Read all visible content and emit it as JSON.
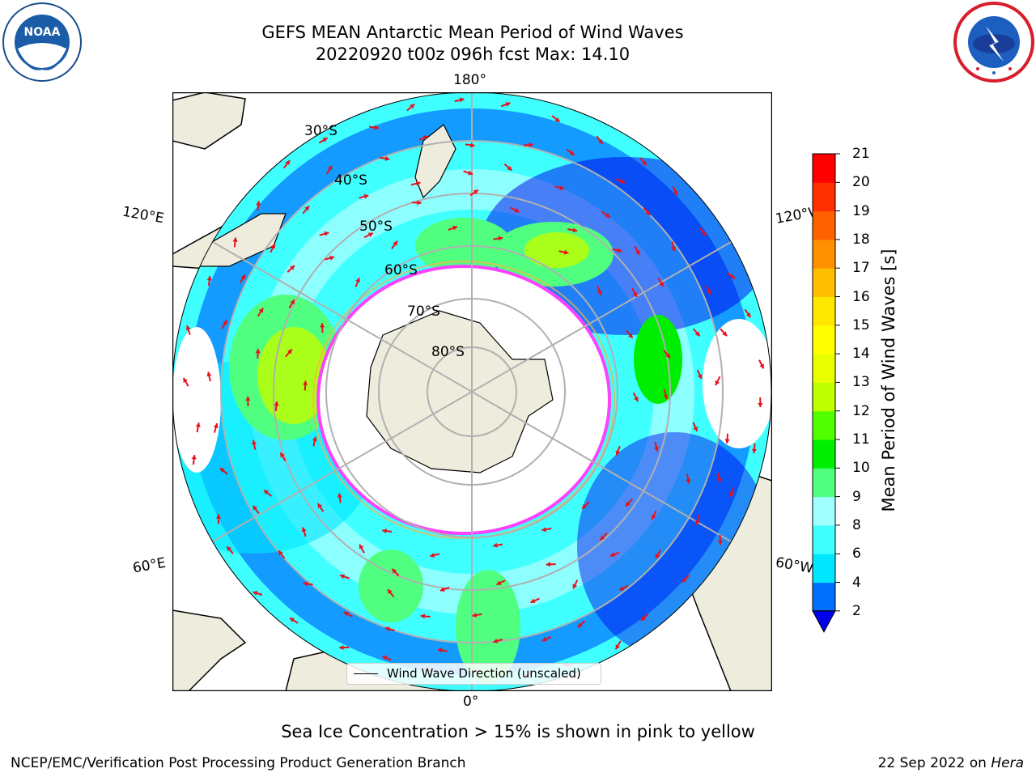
{
  "header": {
    "title_line1": "GEFS MEAN Antarctic Mean Period of Wind Waves",
    "title_line2": "20220920 t00z 096h fcst   Max: 14.10"
  },
  "logos": {
    "noaa": {
      "icon": "noaa-logo",
      "text": "NOAA"
    },
    "nws": {
      "icon": "national-weather-service-logo",
      "text": "NATIONAL WEATHER SERVICE"
    }
  },
  "map": {
    "projection": "south-polar-stereographic",
    "longitude_labels": {
      "top": "180°",
      "bottom": "0°",
      "upper_left": "120°E",
      "lower_left": "60°E",
      "upper_right": "120°W",
      "lower_right": "60°W"
    },
    "latitude_labels": [
      "30°S",
      "40°S",
      "50°S",
      "60°S",
      "70°S",
      "80°S"
    ],
    "land_color": "#eeecdc",
    "ice_edge_colors": [
      "#ff40ff",
      "#ffb040"
    ],
    "arrow_color": "#e8101c"
  },
  "legend": {
    "label": "Wind Wave Direction (unscaled)"
  },
  "colorbar": {
    "label": "Mean Period of Wind Waves [s]",
    "ticks": [
      "2",
      "4",
      "6",
      "8",
      "9",
      "10",
      "11",
      "12",
      "13",
      "14",
      "15",
      "16",
      "17",
      "18",
      "19",
      "20",
      "21"
    ],
    "colors": [
      "#0070ff",
      "#00e6ff",
      "#40ffff",
      "#a0ffff",
      "#50ff80",
      "#00ee00",
      "#50ff00",
      "#c0ff00",
      "#e8ff00",
      "#ffff00",
      "#ffe800",
      "#ffbf00",
      "#ff9000",
      "#ff6000",
      "#ff3000",
      "#ff0000"
    ],
    "under_color": "#0000ee",
    "extend": "min"
  },
  "footer": {
    "subtitle": "Sea Ice Concentration > 15% is shown in pink to yellow",
    "left": "NCEP/EMC/Verification Post Processing Product Generation Branch",
    "right_date": "22 Sep 2022 on",
    "right_machine": "Hera"
  }
}
